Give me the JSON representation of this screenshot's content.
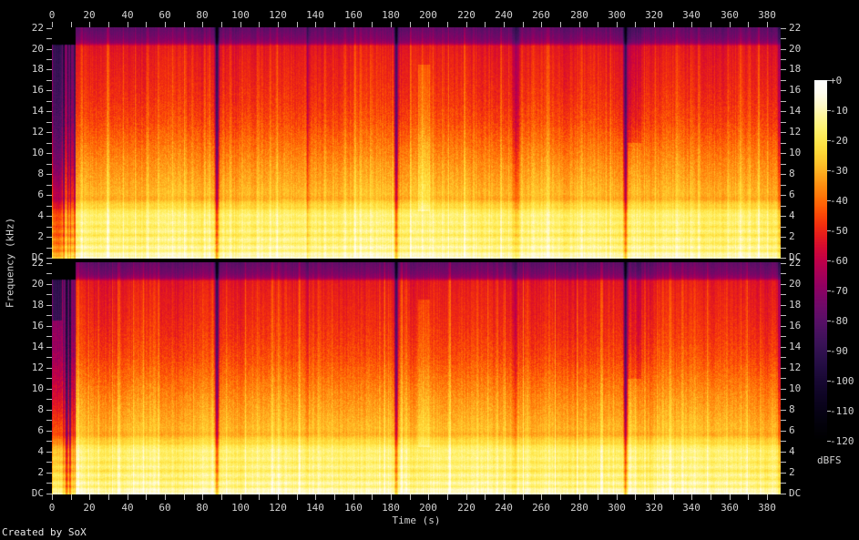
{
  "meta": {
    "creator_text": "Created by SoX"
  },
  "colors": {
    "background": "#000000",
    "tick": "#bdbdbd",
    "label": "#d2d2d2"
  },
  "chart_data": {
    "type": "heatmap",
    "subtype": "audio-spectrogram",
    "channels": 2,
    "xlabel": "Time (s)",
    "ylabel": "Frequency (kHz)",
    "zlabel": "dBFS",
    "x_range_s": [
      0,
      387.2
    ],
    "y_range_khz": [
      0,
      22.05
    ],
    "z_range_db": [
      0,
      -120
    ],
    "grid": false,
    "legend_position": "right",
    "time_ticks_labeled_s": [
      0,
      20,
      40,
      60,
      80,
      100,
      120,
      140,
      160,
      180,
      200,
      220,
      240,
      260,
      280,
      300,
      320,
      340,
      360,
      380
    ],
    "time_ticks_minor_s": [
      10,
      30,
      50,
      70,
      90,
      110,
      130,
      150,
      170,
      190,
      210,
      230,
      250,
      270,
      290,
      310,
      330,
      350,
      370
    ],
    "freq_ticks": [
      {
        "label": "22",
        "khz": 22
      },
      {
        "label": "20",
        "khz": 20
      },
      {
        "label": "18",
        "khz": 18
      },
      {
        "label": "16",
        "khz": 16
      },
      {
        "label": "14",
        "khz": 14
      },
      {
        "label": "12",
        "khz": 12
      },
      {
        "label": "10",
        "khz": 10
      },
      {
        "label": "8",
        "khz": 8
      },
      {
        "label": "6",
        "khz": 6
      },
      {
        "label": "4",
        "khz": 4
      },
      {
        "label": "2",
        "khz": 2
      },
      {
        "label": "DC",
        "khz": 0
      }
    ],
    "freq_ticks_minor_khz": [
      21,
      19,
      17,
      15,
      13,
      11,
      9,
      7,
      5,
      3,
      1
    ],
    "legend_tick_labels": [
      "+0",
      "-10",
      "-20",
      "-30",
      "-40",
      "-50",
      "-60",
      "-70",
      "-80",
      "-90",
      "-100",
      "-110",
      "-120"
    ],
    "palette_db_colors": [
      [
        0,
        "#ffffff"
      ],
      [
        -4,
        "#fffdf0"
      ],
      [
        -8,
        "#fffacc"
      ],
      [
        -12,
        "#fff69a"
      ],
      [
        -16,
        "#fff270"
      ],
      [
        -20,
        "#ffe84e"
      ],
      [
        -24,
        "#ffd837"
      ],
      [
        -28,
        "#ffc129"
      ],
      [
        -32,
        "#ffa41b"
      ],
      [
        -36,
        "#ff870e"
      ],
      [
        -40,
        "#ff6c06"
      ],
      [
        -44,
        "#fc4e06"
      ],
      [
        -48,
        "#f3300e"
      ],
      [
        -52,
        "#e41a1e"
      ],
      [
        -56,
        "#d30934"
      ],
      [
        -60,
        "#c00048"
      ],
      [
        -64,
        "#aa0056"
      ],
      [
        -68,
        "#950060"
      ],
      [
        -72,
        "#7f0566"
      ],
      [
        -76,
        "#6b0b68"
      ],
      [
        -80,
        "#590f66"
      ],
      [
        -84,
        "#48115f"
      ],
      [
        -88,
        "#391256"
      ],
      [
        -92,
        "#2c104b"
      ],
      [
        -96,
        "#210c40"
      ],
      [
        -100,
        "#180833"
      ],
      [
        -104,
        "#100527"
      ],
      [
        -108,
        "#0a031c"
      ],
      [
        -112,
        "#050211"
      ],
      [
        -116,
        "#020108"
      ],
      [
        -120,
        "#000000"
      ]
    ],
    "freq_profile_db": [
      [
        0,
        -12
      ],
      [
        0.8,
        -14
      ],
      [
        2,
        -16
      ],
      [
        3.2,
        -17
      ],
      [
        4.6,
        -19
      ],
      [
        5.1,
        -24
      ],
      [
        5.6,
        -28
      ],
      [
        7,
        -31
      ],
      [
        9,
        -35
      ],
      [
        11,
        -40
      ],
      [
        13,
        -45
      ],
      [
        15,
        -48
      ],
      [
        17,
        -50
      ],
      [
        19,
        -51.5
      ],
      [
        20.3,
        -53
      ],
      [
        20.6,
        -68
      ],
      [
        21,
        -73
      ],
      [
        22.05,
        -79
      ]
    ],
    "freq_lines": [
      {
        "khz": 0.05,
        "db": 7,
        "w": 0.1
      },
      {
        "khz": 0.4,
        "db": 4,
        "w": 0.15
      },
      {
        "khz": 0.7,
        "db": -4,
        "w": 0.1
      },
      {
        "khz": 1.05,
        "db": 4,
        "w": 0.12
      },
      {
        "khz": 1.4,
        "db": -4,
        "w": 0.1
      },
      {
        "khz": 1.8,
        "db": 3.5,
        "w": 0.12
      },
      {
        "khz": 2.2,
        "db": -4.5,
        "w": 0.12
      },
      {
        "khz": 2.6,
        "db": 3,
        "w": 0.12
      },
      {
        "khz": 3.0,
        "db": -3,
        "w": 0.1
      },
      {
        "khz": 3.4,
        "db": 3,
        "w": 0.15
      },
      {
        "khz": 4.1,
        "db": 3,
        "w": 0.2
      },
      {
        "khz": 4.8,
        "db": -3,
        "w": 0.15
      },
      {
        "khz": 5.7,
        "db": -3,
        "w": 0.3
      }
    ],
    "column_texture": {
      "fine_db": 2.4,
      "slow_db": 2.2,
      "spike_db": 7
    },
    "seeds": [
      20107,
      40213
    ],
    "channel_events": [
      [
        {
          "type": "band",
          "t0": -1,
          "t1": 0.7,
          "db": -22,
          "taper": 1
        },
        {
          "type": "band",
          "t0": 0.5,
          "t1": 5.2,
          "db": -38,
          "taper": 1
        },
        {
          "type": "streaks",
          "t0": 5.2,
          "t1": 12.6,
          "db": -25,
          "taper": 1
        },
        {
          "type": "band",
          "t0": -1,
          "t1": 12.6,
          "db": -70,
          "fmin": 20.45,
          "taper": 0
        },
        {
          "type": "gap",
          "t": 87.7,
          "w": 1.0,
          "db": -40,
          "taper": 1
        },
        {
          "type": "gap",
          "t": 135.8,
          "w": 0.7,
          "db": -12,
          "taper": 1
        },
        {
          "type": "gap",
          "t": 183.0,
          "w": 0.9,
          "db": -36,
          "taper": 1
        },
        {
          "type": "gap",
          "t": 246.6,
          "w": 1.5,
          "db": -13,
          "taper": 1
        },
        {
          "type": "gap",
          "t": 304.8,
          "w": 1.0,
          "db": -38,
          "taper": 1
        },
        {
          "type": "band",
          "t0": 194.5,
          "t1": 200.8,
          "db": 7,
          "fmin": 4.5,
          "fmax": 18.5,
          "taper": 0
        },
        {
          "type": "band",
          "t0": 305.8,
          "t1": 313,
          "db": -7,
          "fmin": 11,
          "taper": 0
        },
        {
          "type": "band",
          "t0": 385.6,
          "t1": 390,
          "db": -13,
          "taper": 1
        }
      ],
      [
        {
          "type": "band",
          "t0": -1,
          "t1": 0.7,
          "db": -22,
          "taper": 1
        },
        {
          "type": "band",
          "t0": 0.5,
          "t1": 5.2,
          "db": -38,
          "taper": 1
        },
        {
          "type": "band",
          "t0": 0.5,
          "t1": 5.2,
          "db": 19,
          "fmax": 16.5,
          "taper": 0
        },
        {
          "type": "streaks",
          "t0": 5.2,
          "t1": 12.6,
          "db": -25,
          "taper": 1
        },
        {
          "type": "band",
          "t0": -1,
          "t1": 12.6,
          "db": -70,
          "fmin": 20.45,
          "taper": 0
        },
        {
          "type": "gap",
          "t": 87.7,
          "w": 1.0,
          "db": -40,
          "taper": 1
        },
        {
          "type": "gap",
          "t": 135.8,
          "w": 0.7,
          "db": -10,
          "taper": 1
        },
        {
          "type": "gap",
          "t": 183.0,
          "w": 0.9,
          "db": -36,
          "taper": 1
        },
        {
          "type": "gap",
          "t": 246.6,
          "w": 1.5,
          "db": -13,
          "taper": 1
        },
        {
          "type": "gap",
          "t": 304.8,
          "w": 1.0,
          "db": -38,
          "taper": 1
        },
        {
          "type": "band",
          "t0": 194.5,
          "t1": 200.8,
          "db": 6,
          "fmin": 4.5,
          "fmax": 18.5,
          "taper": 0
        },
        {
          "type": "band",
          "t0": 305.8,
          "t1": 313,
          "db": -6,
          "fmin": 11,
          "taper": 0
        },
        {
          "type": "band",
          "t0": 385.6,
          "t1": 390,
          "db": -13,
          "taper": 1
        }
      ]
    ],
    "arcs": {
      "starts_s": [
        6,
        33,
        64,
        97,
        126,
        157,
        203,
        250,
        298,
        351
      ],
      "spans_s": [
        24,
        20,
        28,
        22,
        30,
        24,
        26,
        22,
        28,
        20
      ],
      "khz0": 0.15,
      "khz1": 1.7,
      "color": "rgba(255,252,215,0.28)"
    }
  }
}
